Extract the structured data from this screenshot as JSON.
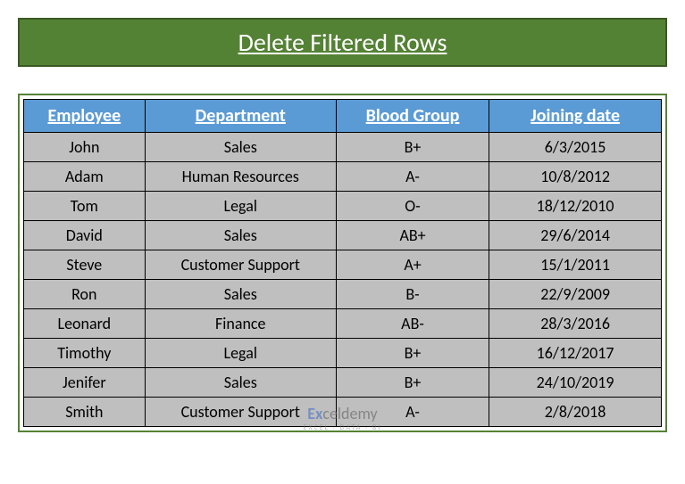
{
  "title": "Delete Filtered Rows",
  "colors": {
    "title_bg": "#548235",
    "title_border": "#3a5a23",
    "title_text": "#ffffff",
    "header_bg": "#5b9bd5",
    "header_text": "#ffffff",
    "cell_bg": "#bfbfbf",
    "cell_text": "#000000",
    "border": "#000000",
    "outer_border": "#548235"
  },
  "columns": [
    "Employee",
    "Department",
    "Blood Group",
    "Joining date"
  ],
  "rows": [
    [
      "John",
      "Sales",
      "B+",
      "6/3/2015"
    ],
    [
      "Adam",
      "Human Resources",
      "A-",
      "10/8/2012"
    ],
    [
      "Tom",
      "Legal",
      "O-",
      "18/12/2010"
    ],
    [
      "David",
      "Sales",
      "AB+",
      "29/6/2014"
    ],
    [
      "Steve",
      "Customer Support",
      "A+",
      "15/1/2011"
    ],
    [
      "Ron",
      "Sales",
      "B-",
      "22/9/2009"
    ],
    [
      "Leonard",
      "Finance",
      "AB-",
      "28/3/2016"
    ],
    [
      "Timothy",
      "Legal",
      "B+",
      "16/12/2017"
    ],
    [
      "Jenifer",
      "Sales",
      "B+",
      "24/10/2019"
    ],
    [
      "Smith",
      "Customer Support",
      "A-",
      "2/8/2018"
    ]
  ],
  "watermark": {
    "brand_prefix": "Ex",
    "brand_suffix": "celdemy",
    "tagline": "EXCEL · DATA · BI"
  }
}
